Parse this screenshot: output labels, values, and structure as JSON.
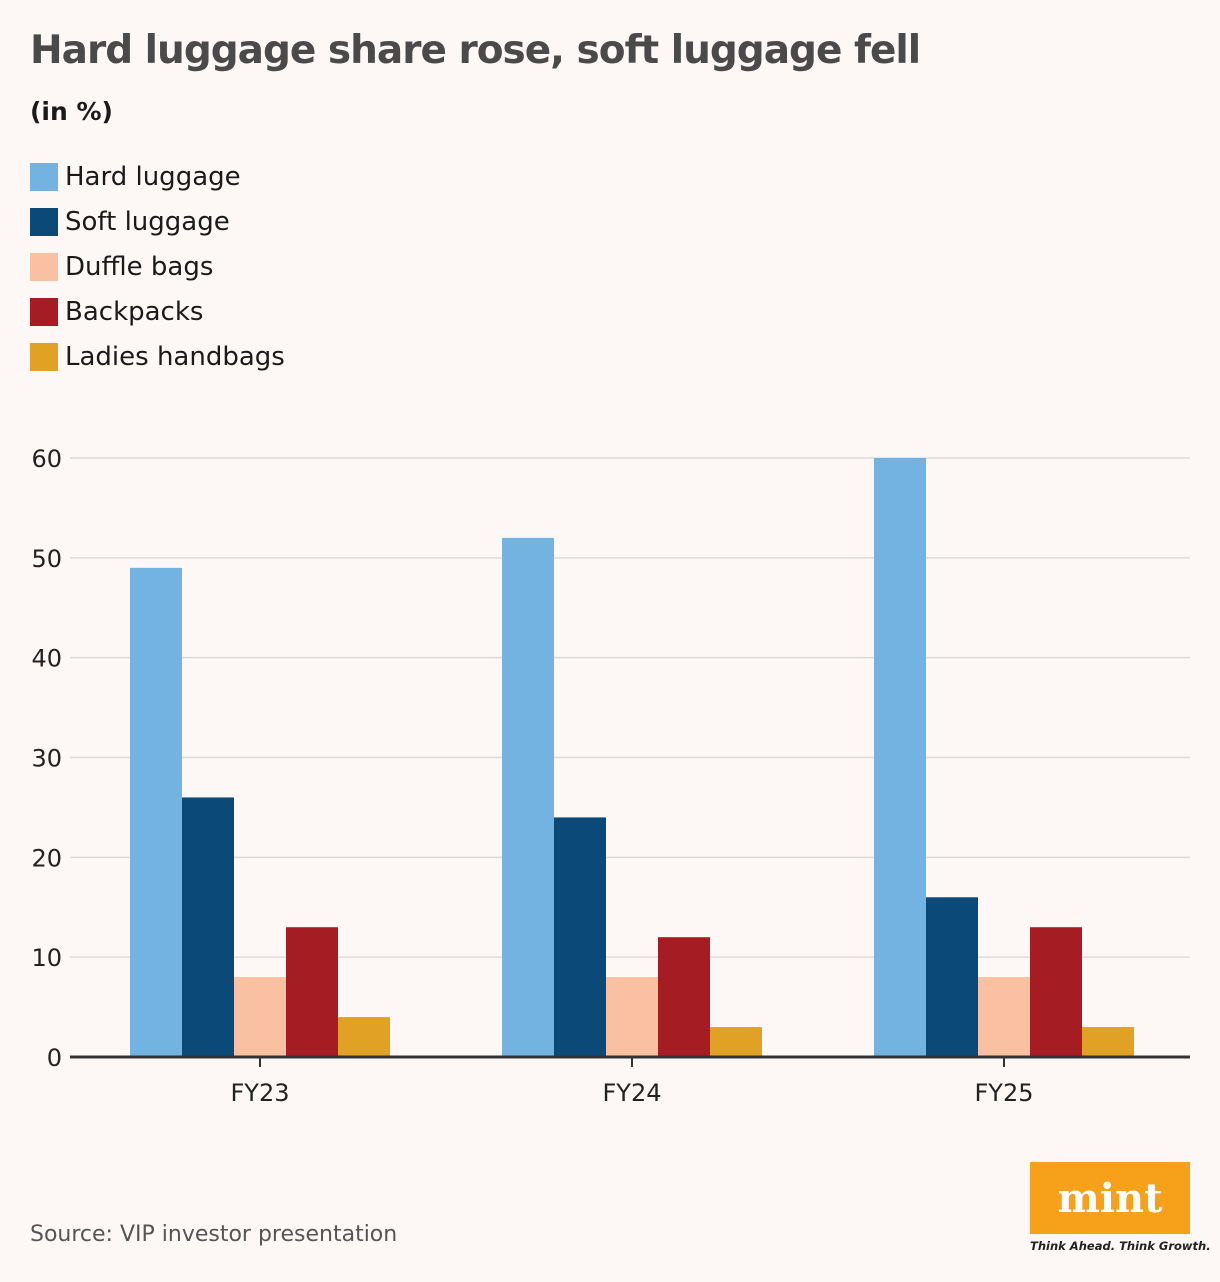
{
  "title": "Hard luggage share rose, soft luggage fell",
  "subtitle": "(in %)",
  "source": "Source: VIP investor presentation",
  "brand": {
    "logo_text": "mint",
    "tagline": "Think Ahead. Think Growth.",
    "color": "#f7a11a"
  },
  "chart_data": {
    "type": "bar",
    "categories": [
      "FY23",
      "FY24",
      "FY25"
    ],
    "series": [
      {
        "name": "Hard luggage",
        "color": "#72b3e2",
        "values": [
          49,
          52,
          60
        ]
      },
      {
        "name": "Soft luggage",
        "color": "#0b4a78",
        "values": [
          26,
          24,
          16
        ]
      },
      {
        "name": "Duffle bags",
        "color": "#f9c0a2",
        "values": [
          8,
          8,
          8
        ]
      },
      {
        "name": "Backpacks",
        "color": "#a51c22",
        "values": [
          13,
          12,
          13
        ]
      },
      {
        "name": "Ladies handbags",
        "color": "#e0a125",
        "values": [
          4,
          3,
          3
        ]
      }
    ],
    "ylim": [
      0,
      60
    ],
    "yticks": [
      0,
      10,
      20,
      30,
      40,
      50,
      60
    ],
    "grid": true,
    "legend_position": "top-left"
  }
}
